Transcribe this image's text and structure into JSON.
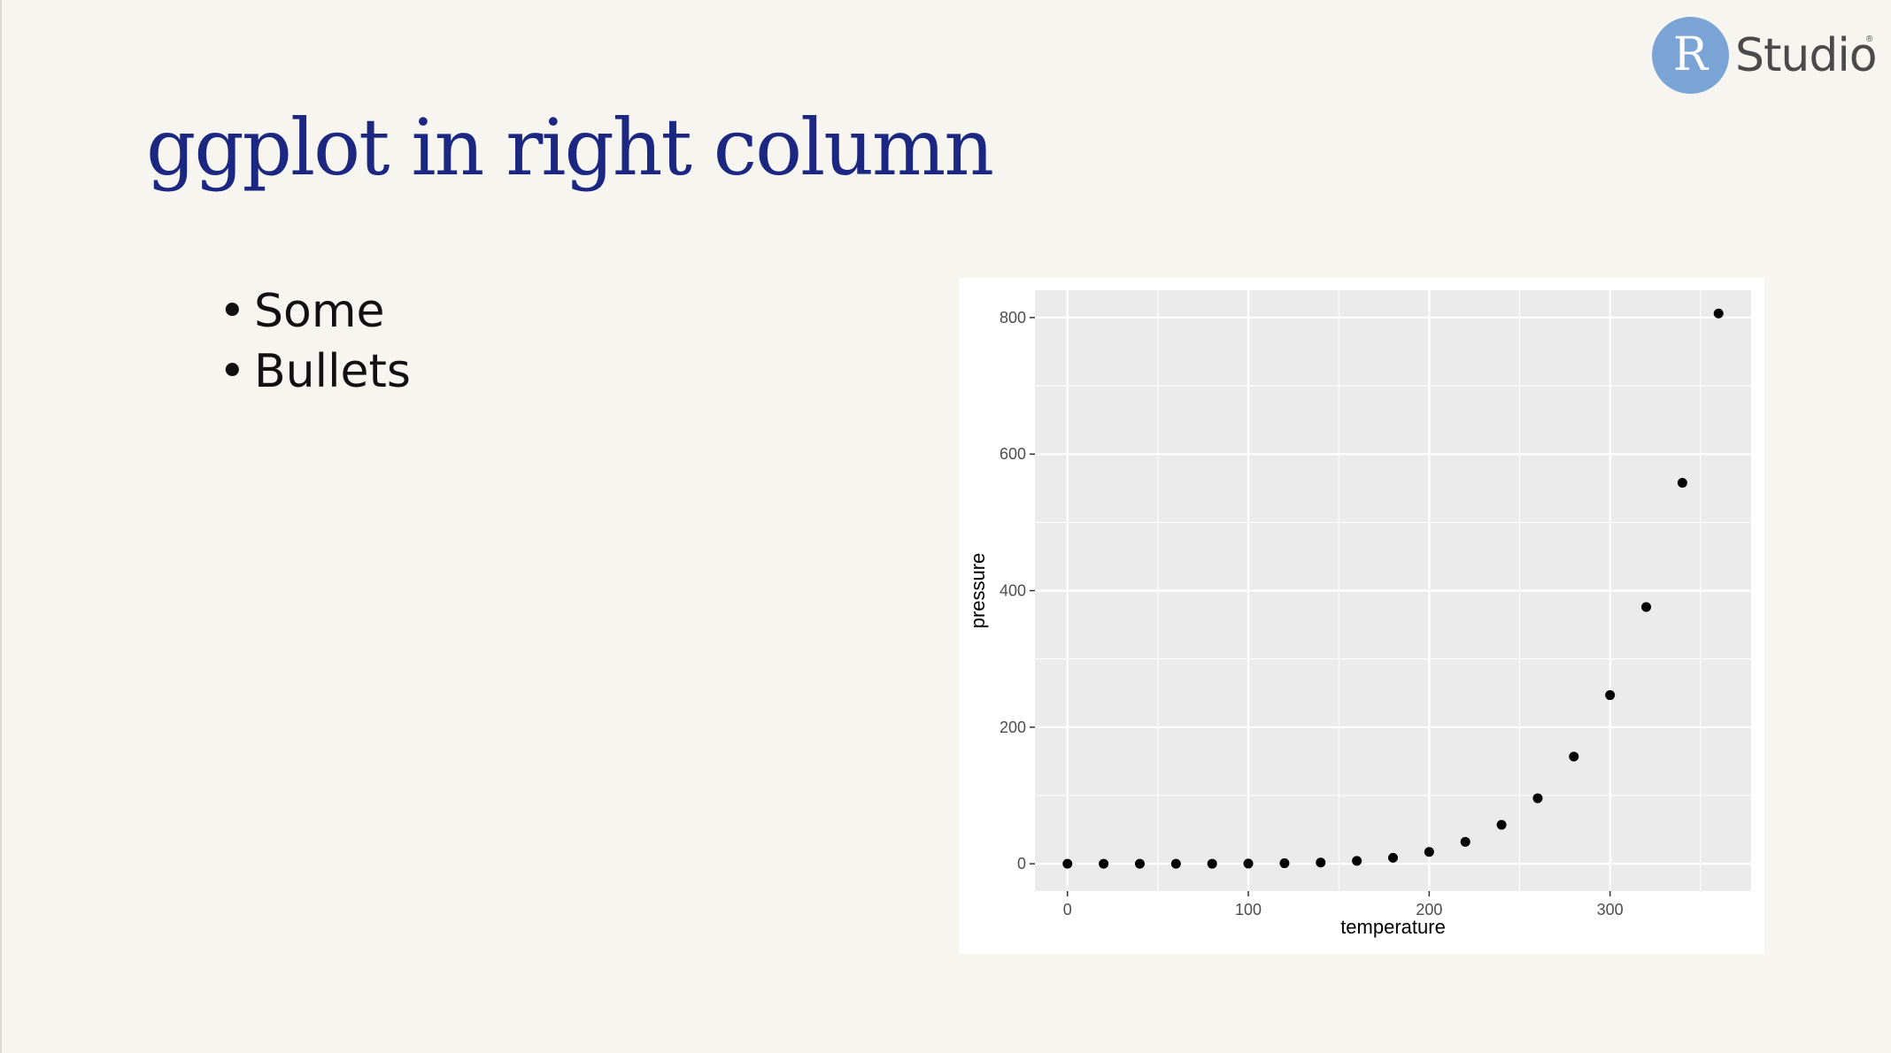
{
  "slide": {
    "title": "ggplot in right column",
    "bullets": [
      "Some",
      "Bullets"
    ]
  },
  "logo": {
    "letter": "R",
    "text": "Studio",
    "reg": "®"
  },
  "colors": {
    "background": "#f6f5ef",
    "title": "#1b2780",
    "logo_circle": "#7aa3d6",
    "panel": "#ebebeb",
    "grid": "#ffffff",
    "point": "#000000"
  },
  "chart_data": {
    "type": "scatter",
    "title": "",
    "xlabel": "temperature",
    "ylabel": "pressure",
    "xlim": [
      -18,
      378
    ],
    "ylim": [
      -40,
      840
    ],
    "x_ticks": [
      0,
      100,
      200,
      300
    ],
    "y_ticks": [
      0,
      200,
      400,
      600,
      800
    ],
    "x_tick_labels": [
      "0",
      "100",
      "200",
      "300"
    ],
    "y_tick_labels": [
      "0",
      "200",
      "400",
      "600",
      "800"
    ],
    "grid": true,
    "x": [
      0,
      20,
      40,
      60,
      80,
      100,
      120,
      140,
      160,
      180,
      200,
      220,
      240,
      260,
      280,
      300,
      320,
      340,
      360
    ],
    "y": [
      0.0002,
      0.0012,
      0.006,
      0.03,
      0.09,
      0.27,
      0.75,
      1.85,
      4.2,
      8.8,
      17.3,
      32.1,
      57,
      96,
      157,
      247,
      376,
      558,
      806
    ]
  }
}
